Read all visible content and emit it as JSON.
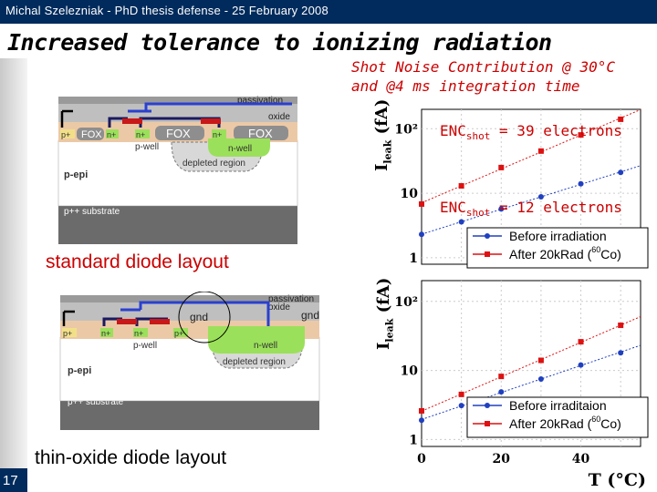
{
  "header": {
    "text": "Michal Szelezniak - PhD thesis defense - 25 February 2008"
  },
  "title": "Increased tolerance to ionizing radiation",
  "slide_number": "17",
  "note": {
    "line1": "Shot Noise Contribution @ 30°C",
    "line2": "and @4 ms integration time"
  },
  "diagrams": {
    "standard": {
      "caption": "standard diode layout",
      "labels": {
        "passivation": "passivation",
        "oxide": "oxide",
        "fox1": "FOX",
        "fox2": "FOX",
        "fox3": "FOX",
        "pplus": "p+",
        "nplus1": "n+",
        "nplus2": "n+",
        "nplus3": "n+",
        "pwell": "p-well",
        "nwell": "n-well",
        "depleted": "depleted region",
        "pepi": "p-epi",
        "substrate": "p++ substrate"
      }
    },
    "thin": {
      "caption": "thin-oxide diode layout",
      "labels": {
        "passivation": "passivation",
        "oxide": "oxide",
        "gnd1": "gnd",
        "gnd2": "gnd",
        "pplus1": "p+",
        "nplus1": "n+",
        "nplus2": "n+",
        "pplus2": "p+",
        "pwell": "p-well",
        "nwell": "n-well",
        "depleted": "depleted region",
        "pepi": "p-epi",
        "substrate": "p++ substrate"
      }
    }
  },
  "enc": {
    "top": {
      "prefix": "ENC",
      "sub": "shot",
      "suffix": " = 39 electrons"
    },
    "bottom": {
      "prefix": "ENC",
      "sub": "shot",
      "suffix": " = 12 electrons"
    }
  },
  "plots": {
    "ylabel_main": "I",
    "ylabel_sub": "leak",
    "ylabel_unit": " (fA)",
    "xlabel": "T (°C)",
    "x_ticks": [
      "0",
      "20",
      "40"
    ],
    "y_ticks": [
      "10²",
      "10",
      "1"
    ]
  },
  "chart_data": [
    {
      "type": "scatter",
      "xlim": [
        0,
        55
      ],
      "ylim_log10": [
        -0.1,
        2.3
      ],
      "series": [
        {
          "name": "Before irradiation",
          "color": "#2040c0",
          "x": [
            0,
            10,
            20,
            30,
            40,
            50
          ],
          "y": [
            2.3,
            3.6,
            5.7,
            8.8,
            14,
            21
          ]
        },
        {
          "name": "After 20kRad (60Co)",
          "color": "#dd1111",
          "x": [
            0,
            10,
            20,
            30,
            40,
            50
          ],
          "y": [
            6.8,
            13,
            25,
            45,
            80,
            140
          ]
        }
      ],
      "legend": [
        {
          "label": "Before irradiation"
        },
        {
          "label": "After 20kRad (",
          "sup": "60",
          "tail": "Co)"
        }
      ],
      "legend_position": "bottom-right"
    },
    {
      "type": "scatter",
      "xlim": [
        0,
        55
      ],
      "ylim_log10": [
        -0.1,
        2.3
      ],
      "series": [
        {
          "name": "Before irraditaion",
          "color": "#2040c0",
          "x": [
            0,
            10,
            20,
            30,
            40,
            50
          ],
          "y": [
            1.9,
            3.1,
            4.9,
            7.5,
            12,
            18
          ]
        },
        {
          "name": "After 20kRad (60Co)",
          "color": "#dd1111",
          "x": [
            0,
            10,
            20,
            30,
            40,
            50
          ],
          "y": [
            2.6,
            4.5,
            8.2,
            14,
            26,
            45
          ]
        }
      ],
      "legend": [
        {
          "label": "Before irraditaion"
        },
        {
          "label": "After 20kRad (",
          "sup": "60",
          "tail": "Co)"
        }
      ],
      "legend_position": "bottom-right"
    }
  ]
}
